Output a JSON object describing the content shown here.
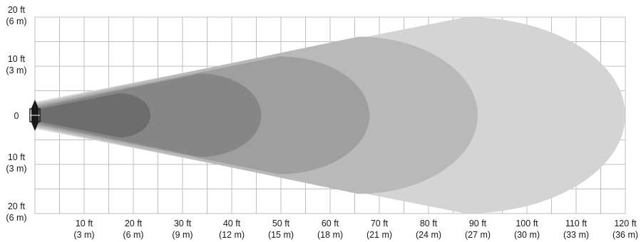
{
  "chart_data": {
    "type": "area",
    "title": "",
    "xlabel": "",
    "ylabel": "",
    "x_unit": "ft",
    "y_unit": "ft",
    "xlim": [
      0,
      120
    ],
    "ylim": [
      -20,
      20
    ],
    "grid": true,
    "x_gridlines": [
      0,
      5,
      10,
      15,
      20,
      25,
      30,
      35,
      40,
      45,
      50,
      55,
      60,
      65,
      70,
      75,
      80,
      85,
      90,
      95,
      100,
      105,
      110,
      115,
      120
    ],
    "y_gridlines": [
      -20,
      -15,
      -10,
      -5,
      0,
      5,
      10,
      15,
      20
    ],
    "x_ticks": [
      {
        "value": 10,
        "label": "10 ft",
        "sublabel": "(3 m)"
      },
      {
        "value": 20,
        "label": "20 ft",
        "sublabel": "(6 m)"
      },
      {
        "value": 30,
        "label": "30 ft",
        "sublabel": "(9 m)"
      },
      {
        "value": 40,
        "label": "40 ft",
        "sublabel": "(12 m)"
      },
      {
        "value": 50,
        "label": "50 ft",
        "sublabel": "(15 m)"
      },
      {
        "value": 60,
        "label": "60 ft",
        "sublabel": "(18 m)"
      },
      {
        "value": 70,
        "label": "70 ft",
        "sublabel": "(21 m)"
      },
      {
        "value": 80,
        "label": "80 ft",
        "sublabel": "(24 m)"
      },
      {
        "value": 90,
        "label": "90 ft",
        "sublabel": "(27 m)"
      },
      {
        "value": 100,
        "label": "100 ft",
        "sublabel": "(30 m)"
      },
      {
        "value": 110,
        "label": "110 ft",
        "sublabel": "(33 m)"
      },
      {
        "value": 120,
        "label": "120 ft",
        "sublabel": "(36 m)"
      }
    ],
    "y_ticks": [
      {
        "value": 20,
        "label": "20 ft",
        "sublabel": "(6 m)"
      },
      {
        "value": 10,
        "label": "10 ft",
        "sublabel": "(3 m)"
      },
      {
        "value": 0,
        "label": "0",
        "sublabel": ""
      },
      {
        "value": -10,
        "label": "10 ft",
        "sublabel": "(3 m)"
      },
      {
        "value": -20,
        "label": "20 ft",
        "sublabel": "(6 m)"
      }
    ],
    "series": [
      {
        "values": {
          "reach": 120,
          "half_width": 20,
          "source_half_width": 2.7
        },
        "color": "#d4d4d4"
      },
      {
        "values": {
          "reach": 90,
          "half_width": 16,
          "source_half_width": 2.3
        },
        "color": "#b9b9b9"
      },
      {
        "values": {
          "reach": 68,
          "half_width": 12,
          "source_half_width": 1.9
        },
        "color": "#9f9f9f"
      },
      {
        "values": {
          "reach": 46,
          "half_width": 8.5,
          "source_half_width": 1.5
        },
        "color": "#868686"
      },
      {
        "values": {
          "reach": 23.5,
          "half_width": 4.5,
          "source_half_width": 1.1
        },
        "color": "#6d6d6d"
      }
    ],
    "grid_color": "#bfbfbf",
    "source_icon": "light-fixture-icon"
  }
}
